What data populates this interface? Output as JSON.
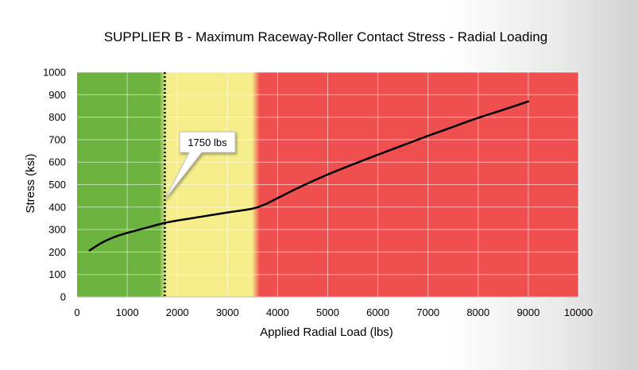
{
  "chart_data": {
    "type": "line",
    "title": "SUPPLIER B - Maximum Raceway-Roller Contact Stress - Radial Loading",
    "xlabel": "Applied Radial Load (lbs)",
    "ylabel": "Stress (ksi)",
    "xlim": [
      0,
      10000
    ],
    "ylim": [
      0,
      1000
    ],
    "x_ticks": [
      0,
      1000,
      2000,
      3000,
      4000,
      5000,
      6000,
      7000,
      8000,
      9000,
      10000
    ],
    "y_ticks": [
      0,
      100,
      200,
      300,
      400,
      500,
      600,
      700,
      800,
      900,
      1000
    ],
    "grid": true,
    "legend": "none",
    "zones": [
      {
        "from": 0,
        "to": 1750,
        "color": "#6db33f"
      },
      {
        "from": 1750,
        "to": 3600,
        "color": "#f5ee8a"
      },
      {
        "from": 3600,
        "to": 10000,
        "color": "#ef4f4f"
      }
    ],
    "marker_line": {
      "x": 1750
    },
    "callout": {
      "label": "1750 lbs",
      "x": 1750,
      "y": 335
    },
    "series": [
      {
        "color": "#000000",
        "x": [
          250,
          500,
          750,
          1000,
          1250,
          1500,
          1750,
          2000,
          2500,
          3000,
          3500,
          3750,
          4000,
          4500,
          5000,
          5500,
          6000,
          6500,
          7000,
          7500,
          8000,
          8500,
          9000
        ],
        "y": [
          207,
          242,
          267,
          285,
          300,
          315,
          330,
          340,
          358,
          376,
          393,
          412,
          440,
          495,
          545,
          590,
          633,
          675,
          717,
          757,
          797,
          833,
          870
        ]
      }
    ]
  }
}
